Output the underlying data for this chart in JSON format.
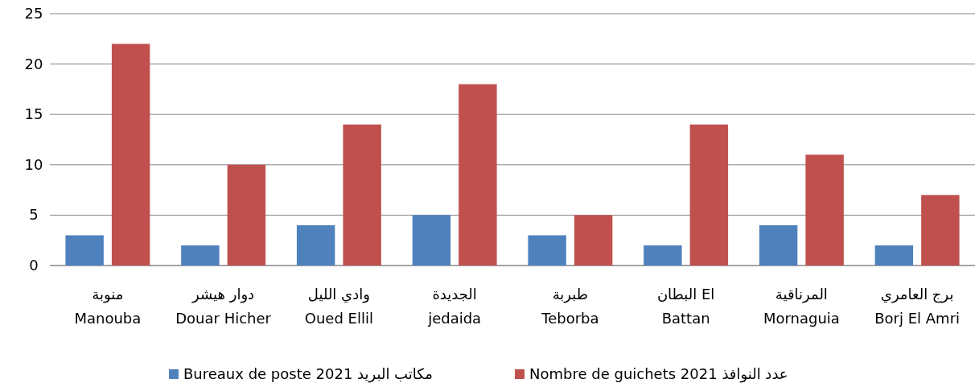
{
  "chart_data": {
    "type": "bar",
    "categories": [
      "منوبة\nManouba",
      "دوار هيشر\nDouar Hicher",
      "وادي الليل\nOued Ellil",
      "الجديدة\njedaida",
      "طبربة\nTeborba",
      "البطان El\nBattan",
      "المرناقية\nMornaguia",
      "برج العامري\nBorj El Amri"
    ],
    "series": [
      {
        "name": "Bureaux de poste 2021 مكاتب البريد",
        "color": "#4f81bd",
        "values": [
          3,
          2,
          4,
          5,
          3,
          2,
          4,
          2
        ]
      },
      {
        "name": "Nombre de guichets 2021 عدد النوافذ",
        "color": "#c0504d",
        "values": [
          22,
          10,
          14,
          18,
          5,
          14,
          11,
          7
        ]
      }
    ],
    "ylim": [
      0,
      25
    ],
    "yticks": [
      0,
      5,
      10,
      15,
      20,
      25
    ],
    "grid": "y",
    "legend": "bottom"
  }
}
